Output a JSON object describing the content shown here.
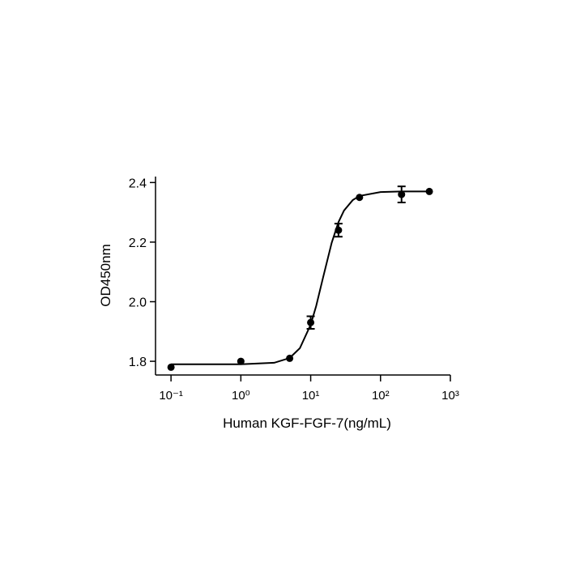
{
  "chart_data": {
    "type": "scatter",
    "xlabel": "Human KGF-FGF-7(ng/mL)",
    "ylabel": "OD450nm",
    "xscale": "log",
    "xlim": [
      0.06,
      1000
    ],
    "ylim": [
      1.754,
      2.42
    ],
    "xticks": [
      {
        "value": 0.1,
        "label": "10⁻¹"
      },
      {
        "value": 1,
        "label": "10⁰"
      },
      {
        "value": 10,
        "label": "10¹"
      },
      {
        "value": 100,
        "label": "10²"
      },
      {
        "value": 1000,
        "label": "10³"
      }
    ],
    "yticks": [
      {
        "value": 1.8,
        "label": "1.8"
      },
      {
        "value": 2.0,
        "label": "2.0"
      },
      {
        "value": 2.2,
        "label": "2.2"
      },
      {
        "value": 2.4,
        "label": "2.4"
      }
    ],
    "color": "#000000",
    "points": {
      "x": [
        0.1,
        1,
        5,
        10,
        25,
        50,
        200,
        500
      ],
      "values": [
        1.78,
        1.8,
        1.81,
        1.93,
        2.24,
        2.35,
        2.36,
        2.37
      ],
      "errors": [
        null,
        null,
        null,
        0.021,
        0.022,
        null,
        0.027,
        null
      ]
    },
    "fit": {
      "x": [
        0.1,
        1,
        3,
        5,
        7,
        10,
        12,
        15,
        20,
        25,
        30,
        40,
        50,
        100,
        200,
        500
      ],
      "values": [
        1.79,
        1.79,
        1.795,
        1.811,
        1.844,
        1.923,
        1.986,
        2.08,
        2.198,
        2.267,
        2.306,
        2.341,
        2.355,
        2.368,
        2.37,
        2.37
      ]
    }
  }
}
